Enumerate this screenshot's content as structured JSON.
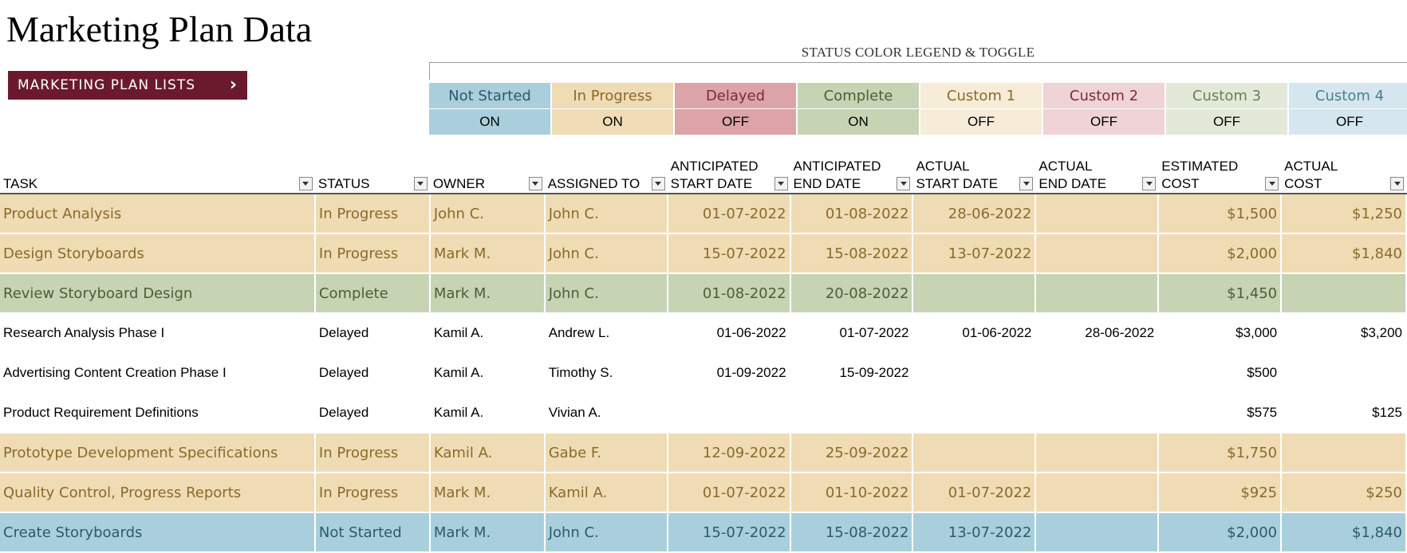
{
  "page": {
    "title": "Marketing Plan Data"
  },
  "nav": {
    "button_label": "MARKETING PLAN LISTS",
    "icon": "chevron-right-icon"
  },
  "legend": {
    "title": "STATUS COLOR LEGEND & TOGGLE",
    "items": [
      {
        "name": "Not Started",
        "toggle": "ON",
        "bg": "#a9cfdd",
        "text": "#2d5a6b",
        "toggle_bg": "#a9cfdd"
      },
      {
        "name": "In Progress",
        "toggle": "ON",
        "bg": "#efdcb5",
        "text": "#8a6a2a",
        "toggle_bg": "#efdcb5"
      },
      {
        "name": "Delayed",
        "toggle": "OFF",
        "bg": "#dca3a9",
        "text": "#7a2e38",
        "toggle_bg": "#dca3a9"
      },
      {
        "name": "Complete",
        "toggle": "ON",
        "bg": "#c6d4b4",
        "text": "#4c5e38",
        "toggle_bg": "#c6d4b4"
      },
      {
        "name": "Custom 1",
        "toggle": "OFF",
        "bg": "#f6ecd8",
        "text": "#8a6a2a",
        "toggle_bg": "#f6ecd8"
      },
      {
        "name": "Custom 2",
        "toggle": "OFF",
        "bg": "#efd3d6",
        "text": "#7a2e38",
        "toggle_bg": "#efd3d6"
      },
      {
        "name": "Custom 3",
        "toggle": "OFF",
        "bg": "#e2e9d9",
        "text": "#6a7d58",
        "toggle_bg": "#e2e9d9"
      },
      {
        "name": "Custom 4",
        "toggle": "OFF",
        "bg": "#d5e6ee",
        "text": "#4a7e92",
        "toggle_bg": "#d5e6ee"
      }
    ]
  },
  "table": {
    "columns": [
      {
        "line1": "",
        "line2": "TASK"
      },
      {
        "line1": "",
        "line2": "STATUS"
      },
      {
        "line1": "",
        "line2": "OWNER"
      },
      {
        "line1": "",
        "line2": "ASSIGNED TO"
      },
      {
        "line1": "ANTICIPATED",
        "line2": "START DATE"
      },
      {
        "line1": "ANTICIPATED",
        "line2": "END DATE"
      },
      {
        "line1": "ACTUAL",
        "line2": "START DATE"
      },
      {
        "line1": "ACTUAL",
        "line2": "END DATE"
      },
      {
        "line1": "ESTIMATED",
        "line2": "COST"
      },
      {
        "line1": "ACTUAL",
        "line2": "COST"
      }
    ],
    "rows": [
      {
        "status_key": "inprogress",
        "cells": [
          "Product Analysis",
          "In Progress",
          "John C.",
          "John C.",
          "01-07-2022",
          "01-08-2022",
          "28-06-2022",
          "",
          "$1,500",
          "$1,250"
        ]
      },
      {
        "status_key": "inprogress",
        "cells": [
          "Design Storyboards",
          "In Progress",
          "Mark M.",
          "John C.",
          "15-07-2022",
          "15-08-2022",
          "13-07-2022",
          "",
          "$2,000",
          "$1,840"
        ]
      },
      {
        "status_key": "complete",
        "cells": [
          "Review Storyboard Design",
          "Complete",
          "Mark M.",
          "John C.",
          "01-08-2022",
          "20-08-2022",
          "",
          "",
          "$1,450",
          ""
        ]
      },
      {
        "status_key": "delayed",
        "cells": [
          "Research Analysis Phase I",
          "Delayed",
          "Kamil A.",
          "Andrew L.",
          "01-06-2022",
          "01-07-2022",
          "01-06-2022",
          "28-06-2022",
          "$3,000",
          "$3,200"
        ]
      },
      {
        "status_key": "delayed",
        "cells": [
          "Advertising Content Creation Phase I",
          "Delayed",
          "Kamil A.",
          "Timothy S.",
          "01-09-2022",
          "15-09-2022",
          "",
          "",
          "$500",
          ""
        ]
      },
      {
        "status_key": "delayed",
        "cells": [
          "Product Requirement Definitions",
          "Delayed",
          "Kamil A.",
          "Vivian A.",
          "",
          "",
          "",
          "",
          "$575",
          "$125"
        ]
      },
      {
        "status_key": "inprogress",
        "cells": [
          "Prototype Development Specifications",
          "In Progress",
          "Kamil A.",
          "Gabe F.",
          "12-09-2022",
          "25-09-2022",
          "",
          "",
          "$1,750",
          ""
        ]
      },
      {
        "status_key": "inprogress",
        "cells": [
          "Quality Control, Progress Reports",
          "In Progress",
          "Mark M.",
          "Kamil A.",
          "01-07-2022",
          "01-10-2022",
          "01-07-2022",
          "",
          "$925",
          "$250"
        ]
      },
      {
        "status_key": "notstarted",
        "cells": [
          "Create Storyboards",
          "Not Started",
          "Mark M.",
          "John C.",
          "15-07-2022",
          "15-08-2022",
          "13-07-2022",
          "",
          "$2,000",
          "$1,840"
        ]
      }
    ]
  }
}
